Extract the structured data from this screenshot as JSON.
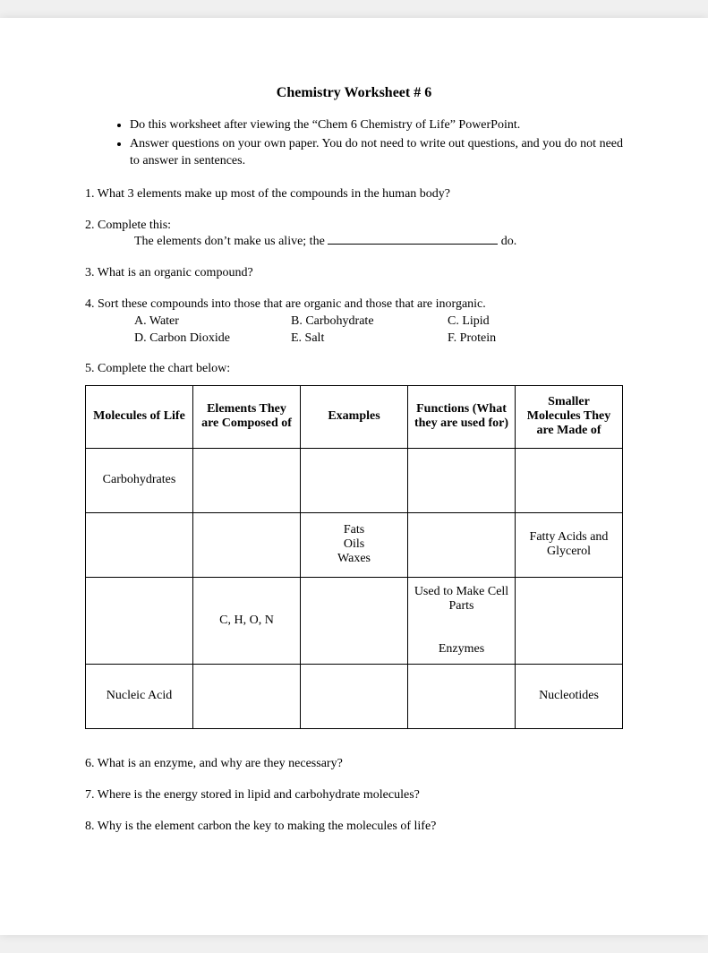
{
  "title": "Chemistry Worksheet # 6",
  "instructions": [
    "Do this worksheet after viewing the “Chem 6 Chemistry of Life” PowerPoint.",
    "Answer questions on your own paper. You do not need to write out questions, and you do not need to answer in sentences."
  ],
  "q1": "1. What 3 elements make up most of the compounds in the human body?",
  "q2": {
    "lead": "2. Complete this:",
    "sentence_prefix": "The elements don’t make us alive; the  ",
    "sentence_suffix": " do."
  },
  "q3": "3. What is an organic compound?",
  "q4": {
    "lead": "4. Sort these compounds into those that are organic and those that are inorganic.",
    "options": [
      {
        "label": "A. Water"
      },
      {
        "label": "B. Carbohydrate"
      },
      {
        "label": "C. Lipid"
      },
      {
        "label": "D. Carbon Dioxide"
      },
      {
        "label": "E. Salt"
      },
      {
        "label": "F. Protein"
      }
    ]
  },
  "q5": {
    "lead": "5. Complete the chart below:",
    "headers": [
      "Molecules of Life",
      "Elements They are Composed of",
      "Examples",
      "Functions (What they are used for)",
      "Smaller Molecules They are Made of"
    ],
    "rows": [
      [
        "Carbohydrates",
        "",
        "",
        "",
        ""
      ],
      [
        "",
        "",
        "Fats\nOils\nWaxes",
        "",
        "Fatty Acids and Glycerol"
      ],
      [
        "",
        "C, H, O, N",
        "",
        "Used to Make Cell Parts\n\nEnzymes",
        ""
      ],
      [
        "Nucleic Acid",
        "",
        "",
        "",
        "Nucleotides"
      ]
    ]
  },
  "q6": "6. What is an enzyme, and why are they necessary?",
  "q7": "7. Where is the energy stored in lipid and carbohydrate molecules?",
  "q8": "8. Why is the element carbon the key to making the molecules of life?"
}
